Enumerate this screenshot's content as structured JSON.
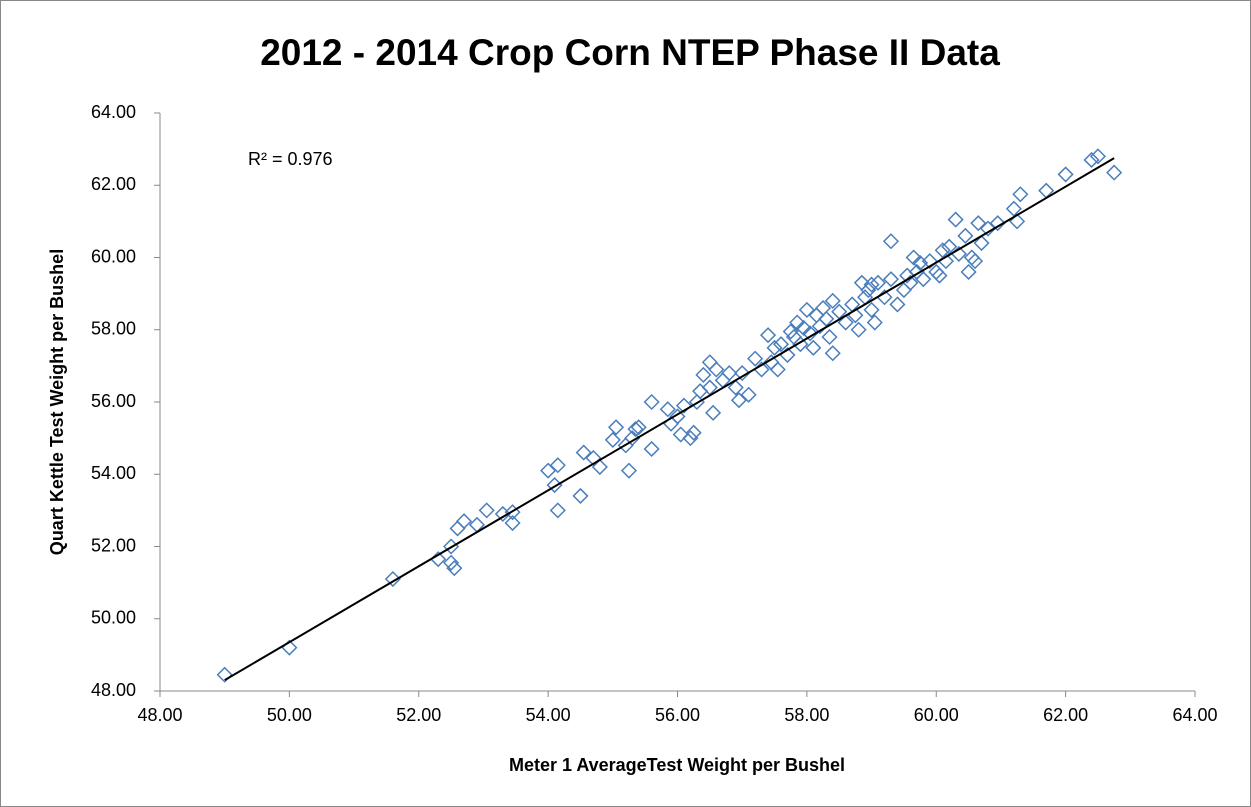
{
  "chart_data": {
    "type": "scatter",
    "title": "2012 - 2014 Crop Corn NTEP Phase II Data",
    "x_label": "Meter 1 AverageTest Weight per Bushel",
    "y_label": "Quart Kettle Test Weight per Bushel",
    "annotation": "R² = 0.976",
    "xlim": [
      48,
      64
    ],
    "ylim": [
      48,
      64
    ],
    "xticks": [
      {
        "value": 48,
        "label": "48.00"
      },
      {
        "value": 50,
        "label": "50.00"
      },
      {
        "value": 52,
        "label": "52.00"
      },
      {
        "value": 54,
        "label": "54.00"
      },
      {
        "value": 56,
        "label": "56.00"
      },
      {
        "value": 58,
        "label": "58.00"
      },
      {
        "value": 60,
        "label": "60.00"
      },
      {
        "value": 62,
        "label": "62.00"
      },
      {
        "value": 64,
        "label": "64.00"
      }
    ],
    "yticks": [
      {
        "value": 48,
        "label": "48.00"
      },
      {
        "value": 50,
        "label": "50.00"
      },
      {
        "value": 52,
        "label": "52.00"
      },
      {
        "value": 54,
        "label": "54.00"
      },
      {
        "value": 56,
        "label": "56.00"
      },
      {
        "value": 58,
        "label": "58.00"
      },
      {
        "value": 60,
        "label": "60.00"
      },
      {
        "value": 62,
        "label": "62.00"
      },
      {
        "value": 64,
        "label": "64.00"
      }
    ],
    "color": "#4a7ebb",
    "trendline": {
      "color": "#000000",
      "x": [
        49.0,
        62.75
      ],
      "y": [
        48.3,
        62.75
      ]
    },
    "x": [
      49.0,
      50.0,
      51.6,
      52.3,
      52.5,
      52.55,
      52.5,
      52.6,
      52.7,
      52.9,
      53.05,
      53.3,
      53.45,
      53.45,
      54.0,
      54.1,
      54.15,
      54.15,
      54.5,
      54.55,
      54.7,
      54.8,
      55.0,
      55.05,
      55.2,
      55.25,
      55.3,
      55.35,
      55.4,
      55.6,
      55.6,
      55.85,
      55.9,
      56.0,
      56.05,
      56.1,
      56.2,
      56.25,
      56.3,
      56.35,
      56.4,
      56.5,
      56.5,
      56.55,
      56.6,
      56.7,
      56.8,
      56.9,
      56.95,
      57.0,
      57.1,
      57.2,
      57.3,
      57.4,
      57.45,
      57.5,
      57.55,
      57.6,
      57.7,
      57.75,
      57.8,
      57.85,
      57.9,
      57.95,
      58.0,
      58.05,
      58.1,
      58.15,
      58.2,
      58.25,
      58.3,
      58.35,
      58.4,
      58.4,
      58.5,
      58.6,
      58.7,
      58.75,
      58.8,
      58.85,
      58.9,
      58.95,
      59.0,
      59.0,
      59.05,
      59.1,
      59.2,
      59.3,
      59.3,
      59.4,
      59.5,
      59.55,
      59.6,
      59.65,
      59.7,
      59.75,
      59.8,
      59.9,
      60.0,
      60.05,
      60.1,
      60.15,
      60.2,
      60.3,
      60.35,
      60.45,
      60.5,
      60.55,
      60.6,
      60.65,
      60.7,
      60.8,
      60.95,
      61.2,
      61.25,
      61.3,
      61.7,
      62.0,
      62.4,
      62.5,
      62.75
    ],
    "values": [
      48.45,
      49.2,
      51.1,
      51.65,
      51.55,
      51.4,
      52.0,
      52.5,
      52.7,
      52.6,
      53.0,
      52.9,
      52.65,
      52.95,
      54.1,
      53.7,
      54.25,
      53.0,
      53.4,
      54.6,
      54.45,
      54.2,
      54.95,
      55.3,
      54.8,
      54.1,
      55.0,
      55.25,
      55.3,
      56.0,
      54.7,
      55.8,
      55.4,
      55.6,
      55.1,
      55.9,
      55.0,
      55.15,
      56.0,
      56.3,
      56.75,
      57.1,
      56.4,
      55.7,
      56.9,
      56.6,
      56.8,
      56.4,
      56.05,
      56.8,
      56.2,
      57.2,
      56.9,
      57.85,
      57.1,
      57.5,
      56.9,
      57.6,
      57.3,
      57.95,
      57.8,
      58.2,
      57.6,
      58.05,
      58.55,
      57.9,
      57.5,
      58.4,
      58.1,
      58.6,
      58.3,
      57.8,
      57.35,
      58.8,
      58.5,
      58.2,
      58.7,
      58.4,
      58.0,
      59.3,
      58.9,
      59.1,
      59.25,
      58.55,
      58.2,
      59.3,
      58.9,
      60.45,
      59.4,
      58.7,
      59.1,
      59.5,
      59.3,
      60.0,
      59.6,
      59.85,
      59.4,
      59.9,
      59.6,
      59.5,
      60.2,
      59.9,
      60.3,
      61.05,
      60.1,
      60.6,
      59.6,
      60.0,
      59.9,
      60.95,
      60.4,
      60.8,
      60.95,
      61.35,
      61.0,
      61.75,
      61.85,
      62.3,
      62.7,
      62.8,
      62.35
    ]
  }
}
